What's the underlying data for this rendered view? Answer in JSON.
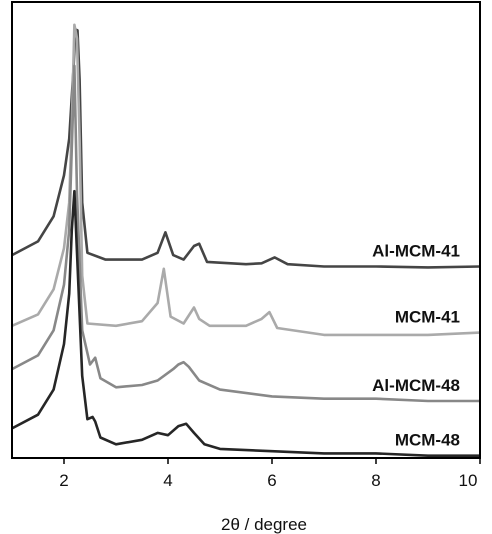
{
  "chart_data": {
    "type": "line",
    "title": "",
    "xlabel": "2θ / degree",
    "ylabel": "",
    "xlim": [
      1,
      10
    ],
    "ylim": [
      0,
      10
    ],
    "x_ticks": [
      "2",
      "4",
      "6",
      "8",
      "10"
    ],
    "x_tick_values": [
      2,
      4,
      6,
      8,
      10
    ],
    "grid": false,
    "legend": "none",
    "series": [
      {
        "name": "Al-MCM-41",
        "color": "#454545",
        "points": [
          [
            1.0,
            4.45
          ],
          [
            1.5,
            4.75
          ],
          [
            1.8,
            5.3
          ],
          [
            2.0,
            6.2
          ],
          [
            2.1,
            7.0
          ],
          [
            2.18,
            8.5
          ],
          [
            2.22,
            9.4
          ],
          [
            2.26,
            9.38
          ],
          [
            2.3,
            8.3
          ],
          [
            2.35,
            5.6
          ],
          [
            2.45,
            4.5
          ],
          [
            2.8,
            4.35
          ],
          [
            3.5,
            4.35
          ],
          [
            3.8,
            4.5
          ],
          [
            3.95,
            4.95
          ],
          [
            4.1,
            4.45
          ],
          [
            4.3,
            4.35
          ],
          [
            4.5,
            4.65
          ],
          [
            4.6,
            4.7
          ],
          [
            4.75,
            4.3
          ],
          [
            5.5,
            4.25
          ],
          [
            5.8,
            4.27
          ],
          [
            6.05,
            4.4
          ],
          [
            6.3,
            4.25
          ],
          [
            7.0,
            4.2
          ],
          [
            8.0,
            4.2
          ],
          [
            9.0,
            4.18
          ],
          [
            10.0,
            4.2
          ]
        ]
      },
      {
        "name": "MCM-41",
        "color": "#aaaaaa",
        "points": [
          [
            1.0,
            2.9
          ],
          [
            1.5,
            3.15
          ],
          [
            1.8,
            3.7
          ],
          [
            2.0,
            4.6
          ],
          [
            2.1,
            5.6
          ],
          [
            2.15,
            7.3
          ],
          [
            2.2,
            9.5
          ],
          [
            2.25,
            9.2
          ],
          [
            2.3,
            7.0
          ],
          [
            2.35,
            4.0
          ],
          [
            2.45,
            2.95
          ],
          [
            3.0,
            2.9
          ],
          [
            3.5,
            3.0
          ],
          [
            3.8,
            3.4
          ],
          [
            3.92,
            4.15
          ],
          [
            4.05,
            3.1
          ],
          [
            4.3,
            2.95
          ],
          [
            4.5,
            3.3
          ],
          [
            4.6,
            3.05
          ],
          [
            4.8,
            2.9
          ],
          [
            5.5,
            2.9
          ],
          [
            5.8,
            3.05
          ],
          [
            5.95,
            3.2
          ],
          [
            6.1,
            2.85
          ],
          [
            7.0,
            2.7
          ],
          [
            8.0,
            2.7
          ],
          [
            9.0,
            2.7
          ],
          [
            10.0,
            2.75
          ]
        ]
      },
      {
        "name": "Al-MCM-48",
        "color": "#888888",
        "points": [
          [
            1.0,
            1.95
          ],
          [
            1.5,
            2.25
          ],
          [
            1.8,
            2.8
          ],
          [
            2.0,
            3.8
          ],
          [
            2.1,
            5.0
          ],
          [
            2.15,
            6.8
          ],
          [
            2.2,
            8.6
          ],
          [
            2.25,
            5.8
          ],
          [
            2.35,
            2.8
          ],
          [
            2.5,
            2.05
          ],
          [
            2.6,
            2.2
          ],
          [
            2.7,
            1.75
          ],
          [
            3.0,
            1.55
          ],
          [
            3.5,
            1.6
          ],
          [
            3.8,
            1.7
          ],
          [
            4.1,
            1.95
          ],
          [
            4.2,
            2.05
          ],
          [
            4.3,
            2.1
          ],
          [
            4.4,
            2.0
          ],
          [
            4.6,
            1.7
          ],
          [
            5.0,
            1.5
          ],
          [
            6.0,
            1.35
          ],
          [
            7.0,
            1.3
          ],
          [
            8.0,
            1.3
          ],
          [
            9.0,
            1.25
          ],
          [
            10.0,
            1.25
          ]
        ]
      },
      {
        "name": "MCM-48",
        "color": "#262626",
        "points": [
          [
            1.0,
            0.65
          ],
          [
            1.5,
            0.95
          ],
          [
            1.8,
            1.5
          ],
          [
            2.0,
            2.5
          ],
          [
            2.1,
            3.6
          ],
          [
            2.15,
            5.0
          ],
          [
            2.2,
            5.85
          ],
          [
            2.25,
            4.5
          ],
          [
            2.35,
            1.8
          ],
          [
            2.45,
            0.85
          ],
          [
            2.55,
            0.9
          ],
          [
            2.6,
            0.8
          ],
          [
            2.7,
            0.45
          ],
          [
            3.0,
            0.3
          ],
          [
            3.5,
            0.4
          ],
          [
            3.8,
            0.55
          ],
          [
            4.0,
            0.5
          ],
          [
            4.2,
            0.7
          ],
          [
            4.35,
            0.75
          ],
          [
            4.5,
            0.55
          ],
          [
            4.7,
            0.3
          ],
          [
            5.0,
            0.2
          ],
          [
            6.0,
            0.15
          ],
          [
            7.0,
            0.1
          ],
          [
            8.0,
            0.1
          ],
          [
            9.0,
            0.05
          ],
          [
            10.0,
            0.05
          ]
        ]
      }
    ]
  }
}
